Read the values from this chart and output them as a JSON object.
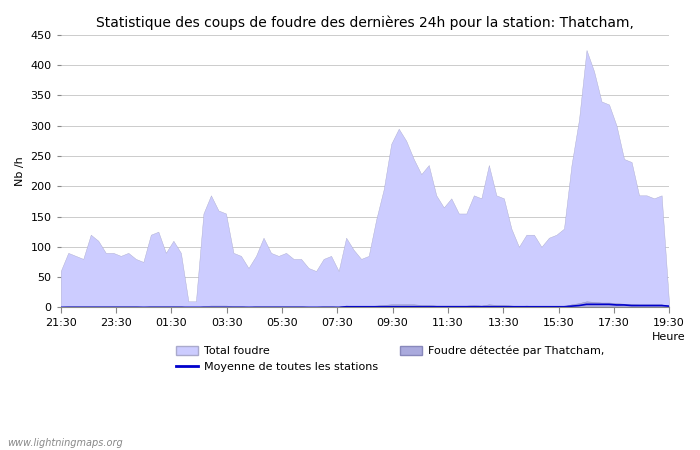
{
  "title": "Statistique des coups de foudre des dernières 24h pour la station: Thatcham,",
  "xlabel": "Heure",
  "ylabel": "Nb /h",
  "watermark": "www.lightningmaps.org",
  "ylim": [
    0,
    450
  ],
  "yticks": [
    0,
    50,
    100,
    150,
    200,
    250,
    300,
    350,
    400,
    450
  ],
  "x_labels": [
    "21:30",
    "23:30",
    "01:30",
    "03:30",
    "05:30",
    "07:30",
    "09:30",
    "11:30",
    "13:30",
    "15:30",
    "17:30",
    "19:30"
  ],
  "legend": {
    "total_foudre_label": "Total foudre",
    "moyenne_label": "Moyenne de toutes les stations",
    "detected_label": "Foudre détectée par Thatcham,"
  },
  "total_foudre_color": "#ccccff",
  "total_foudre_line_color": "#aaaacc",
  "detected_color": "#aaaadd",
  "detected_line_color": "#8888bb",
  "moyenne_color": "#0000cc",
  "background_color": "#ffffff",
  "grid_color": "#cccccc",
  "title_fontsize": 10,
  "axis_fontsize": 8,
  "tick_fontsize": 8,
  "total_foudre_data": [
    60,
    90,
    85,
    80,
    120,
    110,
    90,
    90,
    85,
    90,
    80,
    75,
    120,
    125,
    90,
    110,
    90,
    10,
    10,
    155,
    185,
    160,
    155,
    90,
    85,
    65,
    85,
    115,
    90,
    85,
    90,
    80,
    80,
    65,
    60,
    80,
    85,
    60,
    115,
    95,
    80,
    85,
    145,
    195,
    270,
    295,
    275,
    245,
    220,
    235,
    185,
    165,
    180,
    155,
    155,
    185,
    180,
    235,
    185,
    180,
    130,
    100,
    120,
    120,
    100,
    115,
    120,
    130,
    235,
    310,
    425,
    390,
    340,
    335,
    300,
    245,
    240,
    185,
    185,
    180,
    185,
    5
  ],
  "detected_foudre_data": [
    1,
    2,
    2,
    2,
    2,
    2,
    2,
    2,
    2,
    2,
    2,
    1,
    2,
    2,
    2,
    2,
    2,
    0,
    0,
    2,
    3,
    3,
    3,
    2,
    2,
    1,
    2,
    2,
    2,
    2,
    2,
    2,
    2,
    1,
    1,
    2,
    2,
    1,
    3,
    2,
    2,
    2,
    3,
    4,
    5,
    5,
    5,
    5,
    4,
    4,
    3,
    3,
    3,
    3,
    3,
    4,
    3,
    5,
    4,
    4,
    3,
    2,
    3,
    2,
    2,
    2,
    2,
    2,
    5,
    7,
    10,
    9,
    8,
    8,
    7,
    6,
    6,
    5,
    5,
    5,
    5,
    2
  ],
  "moyenne_data": [
    0,
    0,
    0,
    0,
    0,
    0,
    0,
    0,
    0,
    0,
    0,
    0,
    0,
    0,
    0,
    0,
    0,
    0,
    0,
    0,
    0,
    0,
    0,
    0,
    0,
    0,
    0,
    0,
    0,
    0,
    0,
    0,
    0,
    0,
    0,
    0,
    0,
    0,
    1,
    1,
    1,
    1,
    1,
    1,
    1,
    1,
    1,
    1,
    1,
    1,
    1,
    1,
    1,
    1,
    1,
    1,
    1,
    1,
    1,
    1,
    1,
    1,
    1,
    1,
    1,
    1,
    1,
    1,
    2,
    3,
    5,
    5,
    5,
    5,
    4,
    4,
    3,
    3,
    3,
    3,
    3,
    2
  ]
}
